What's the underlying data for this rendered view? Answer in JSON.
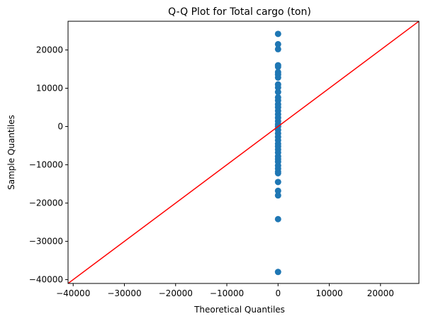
{
  "chart_data": {
    "type": "scatter",
    "title": "Q-Q Plot for Total cargo (ton)",
    "xlabel": "Theoretical Quantiles",
    "ylabel": "Sample Quantiles",
    "xlim": [
      -41000,
      27500
    ],
    "ylim": [
      -41000,
      27500
    ],
    "xticks": [
      -40000,
      -30000,
      -20000,
      -10000,
      0,
      10000,
      20000
    ],
    "yticks": [
      -40000,
      -30000,
      -20000,
      -10000,
      0,
      10000,
      20000
    ],
    "xtick_labels": [
      "−40000",
      "−30000",
      "−20000",
      "−10000",
      "0",
      "10000",
      "20000"
    ],
    "ytick_labels": [
      "−40000",
      "−30000",
      "−20000",
      "−10000",
      "0",
      "10000",
      "20000"
    ],
    "grid": false,
    "series": [
      {
        "kind": "points",
        "color": "#1f77b4",
        "x": [
          -2.1,
          -1.8,
          -1.6,
          -1.45,
          -1.3,
          -1.2,
          -1.1,
          -1.0,
          -0.9,
          -0.82,
          -0.74,
          -0.66,
          -0.58,
          -0.5,
          -0.42,
          -0.35,
          -0.28,
          -0.21,
          -0.14,
          -0.07,
          0.0,
          0.07,
          0.14,
          0.21,
          0.28,
          0.35,
          0.42,
          0.5,
          0.58,
          0.66,
          0.74,
          0.82,
          0.9,
          1.0,
          1.1,
          1.2,
          1.3,
          1.45,
          1.6,
          1.8,
          2.1
        ],
        "y": [
          -38000,
          -24200,
          -18000,
          -16800,
          -14500,
          -12200,
          -11800,
          -11000,
          -10200,
          -9200,
          -8500,
          -7800,
          -6800,
          -6000,
          -5200,
          -4500,
          -3600,
          -2700,
          -1800,
          -900,
          0,
          600,
          1400,
          2300,
          3200,
          4100,
          5000,
          5800,
          6800,
          7600,
          9000,
          10200,
          11000,
          12800,
          13600,
          14200,
          15600,
          16000,
          20200,
          21500,
          24200
        ]
      },
      {
        "kind": "line",
        "color": "#ff0000",
        "x": [
          -41000,
          27500
        ],
        "y": [
          -41000,
          27500
        ]
      }
    ]
  }
}
